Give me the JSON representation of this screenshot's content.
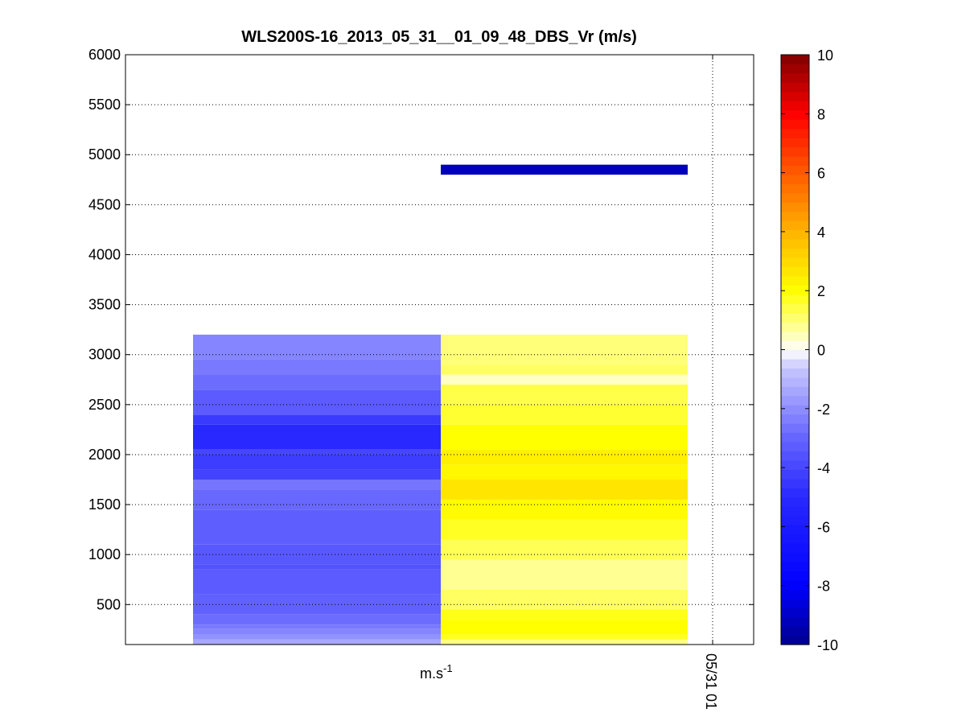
{
  "chart_data": {
    "type": "heatmap",
    "title": "WLS200S-16_2013_05_31__01_09_48_DBS_Vr (m/s)",
    "xlabel": "m.s-1",
    "xlabel_base": "m.s",
    "xlabel_superscript": "-1",
    "x_tick_labels": [
      "05/31 01"
    ],
    "ylim": [
      100,
      6000
    ],
    "y_ticks": [
      500,
      1000,
      1500,
      2000,
      2500,
      3000,
      3500,
      4000,
      4500,
      5000,
      5500,
      6000
    ],
    "grid": true,
    "colorbar": {
      "range": [
        -10,
        10
      ],
      "ticks": [
        -10,
        -8,
        -6,
        -4,
        -2,
        0,
        2,
        4,
        6,
        8,
        10
      ],
      "low_color": "#00008f",
      "mid_color": "#ffffff",
      "high_color": "#800000"
    },
    "columns": [
      {
        "name": "column-1",
        "cells": [
          {
            "y0": 100,
            "y1": 150,
            "value": -1.4
          },
          {
            "y0": 150,
            "y1": 200,
            "value": -1.9
          },
          {
            "y0": 200,
            "y1": 260,
            "value": -2.2
          },
          {
            "y0": 260,
            "y1": 300,
            "value": -2.5
          },
          {
            "y0": 300,
            "y1": 400,
            "value": -2.8
          },
          {
            "y0": 400,
            "y1": 600,
            "value": -3.1
          },
          {
            "y0": 600,
            "y1": 850,
            "value": -3.3
          },
          {
            "y0": 850,
            "y1": 900,
            "value": -3.6
          },
          {
            "y0": 900,
            "y1": 1100,
            "value": -3.4
          },
          {
            "y0": 1100,
            "y1": 1450,
            "value": -3.2
          },
          {
            "y0": 1450,
            "y1": 1650,
            "value": -2.9
          },
          {
            "y0": 1650,
            "y1": 1750,
            "value": -2.6
          },
          {
            "y0": 1750,
            "y1": 1850,
            "value": -4.1
          },
          {
            "y0": 1850,
            "y1": 2000,
            "value": -4.3
          },
          {
            "y0": 2000,
            "y1": 2050,
            "value": -4.0
          },
          {
            "y0": 2050,
            "y1": 2300,
            "value": -5.0
          },
          {
            "y0": 2300,
            "y1": 2400,
            "value": -4.4
          },
          {
            "y0": 2400,
            "y1": 2650,
            "value": -3.3
          },
          {
            "y0": 2650,
            "y1": 2800,
            "value": -2.8
          },
          {
            "y0": 2800,
            "y1": 2950,
            "value": -2.5
          },
          {
            "y0": 2950,
            "y1": 3200,
            "value": -2.2
          }
        ]
      },
      {
        "name": "column-2",
        "cells": [
          {
            "y0": 100,
            "y1": 150,
            "value": 0.9
          },
          {
            "y0": 150,
            "y1": 200,
            "value": 1.7
          },
          {
            "y0": 200,
            "y1": 350,
            "value": 2.0
          },
          {
            "y0": 350,
            "y1": 450,
            "value": 1.8
          },
          {
            "y0": 450,
            "y1": 650,
            "value": 1.2
          },
          {
            "y0": 650,
            "y1": 950,
            "value": 0.8
          },
          {
            "y0": 950,
            "y1": 1150,
            "value": 1.3
          },
          {
            "y0": 1150,
            "y1": 1350,
            "value": 1.7
          },
          {
            "y0": 1350,
            "y1": 1550,
            "value": 2.1
          },
          {
            "y0": 1550,
            "y1": 1750,
            "value": 2.7
          },
          {
            "y0": 1750,
            "y1": 1900,
            "value": 2.2
          },
          {
            "y0": 1900,
            "y1": 2050,
            "value": 2.4
          },
          {
            "y0": 2050,
            "y1": 2300,
            "value": 2.0
          },
          {
            "y0": 2300,
            "y1": 2500,
            "value": 1.6
          },
          {
            "y0": 2500,
            "y1": 2700,
            "value": 1.4
          },
          {
            "y0": 2700,
            "y1": 2800,
            "value": 0.4
          },
          {
            "y0": 2800,
            "y1": 2900,
            "value": 1.2
          },
          {
            "y0": 2900,
            "y1": 3200,
            "value": 1.0
          }
        ]
      },
      {
        "name": "column-3",
        "cells": []
      }
    ],
    "overlay_bar": {
      "y0": 4800,
      "y1": 4900,
      "value": -9.2,
      "columns": [
        1
      ]
    }
  }
}
